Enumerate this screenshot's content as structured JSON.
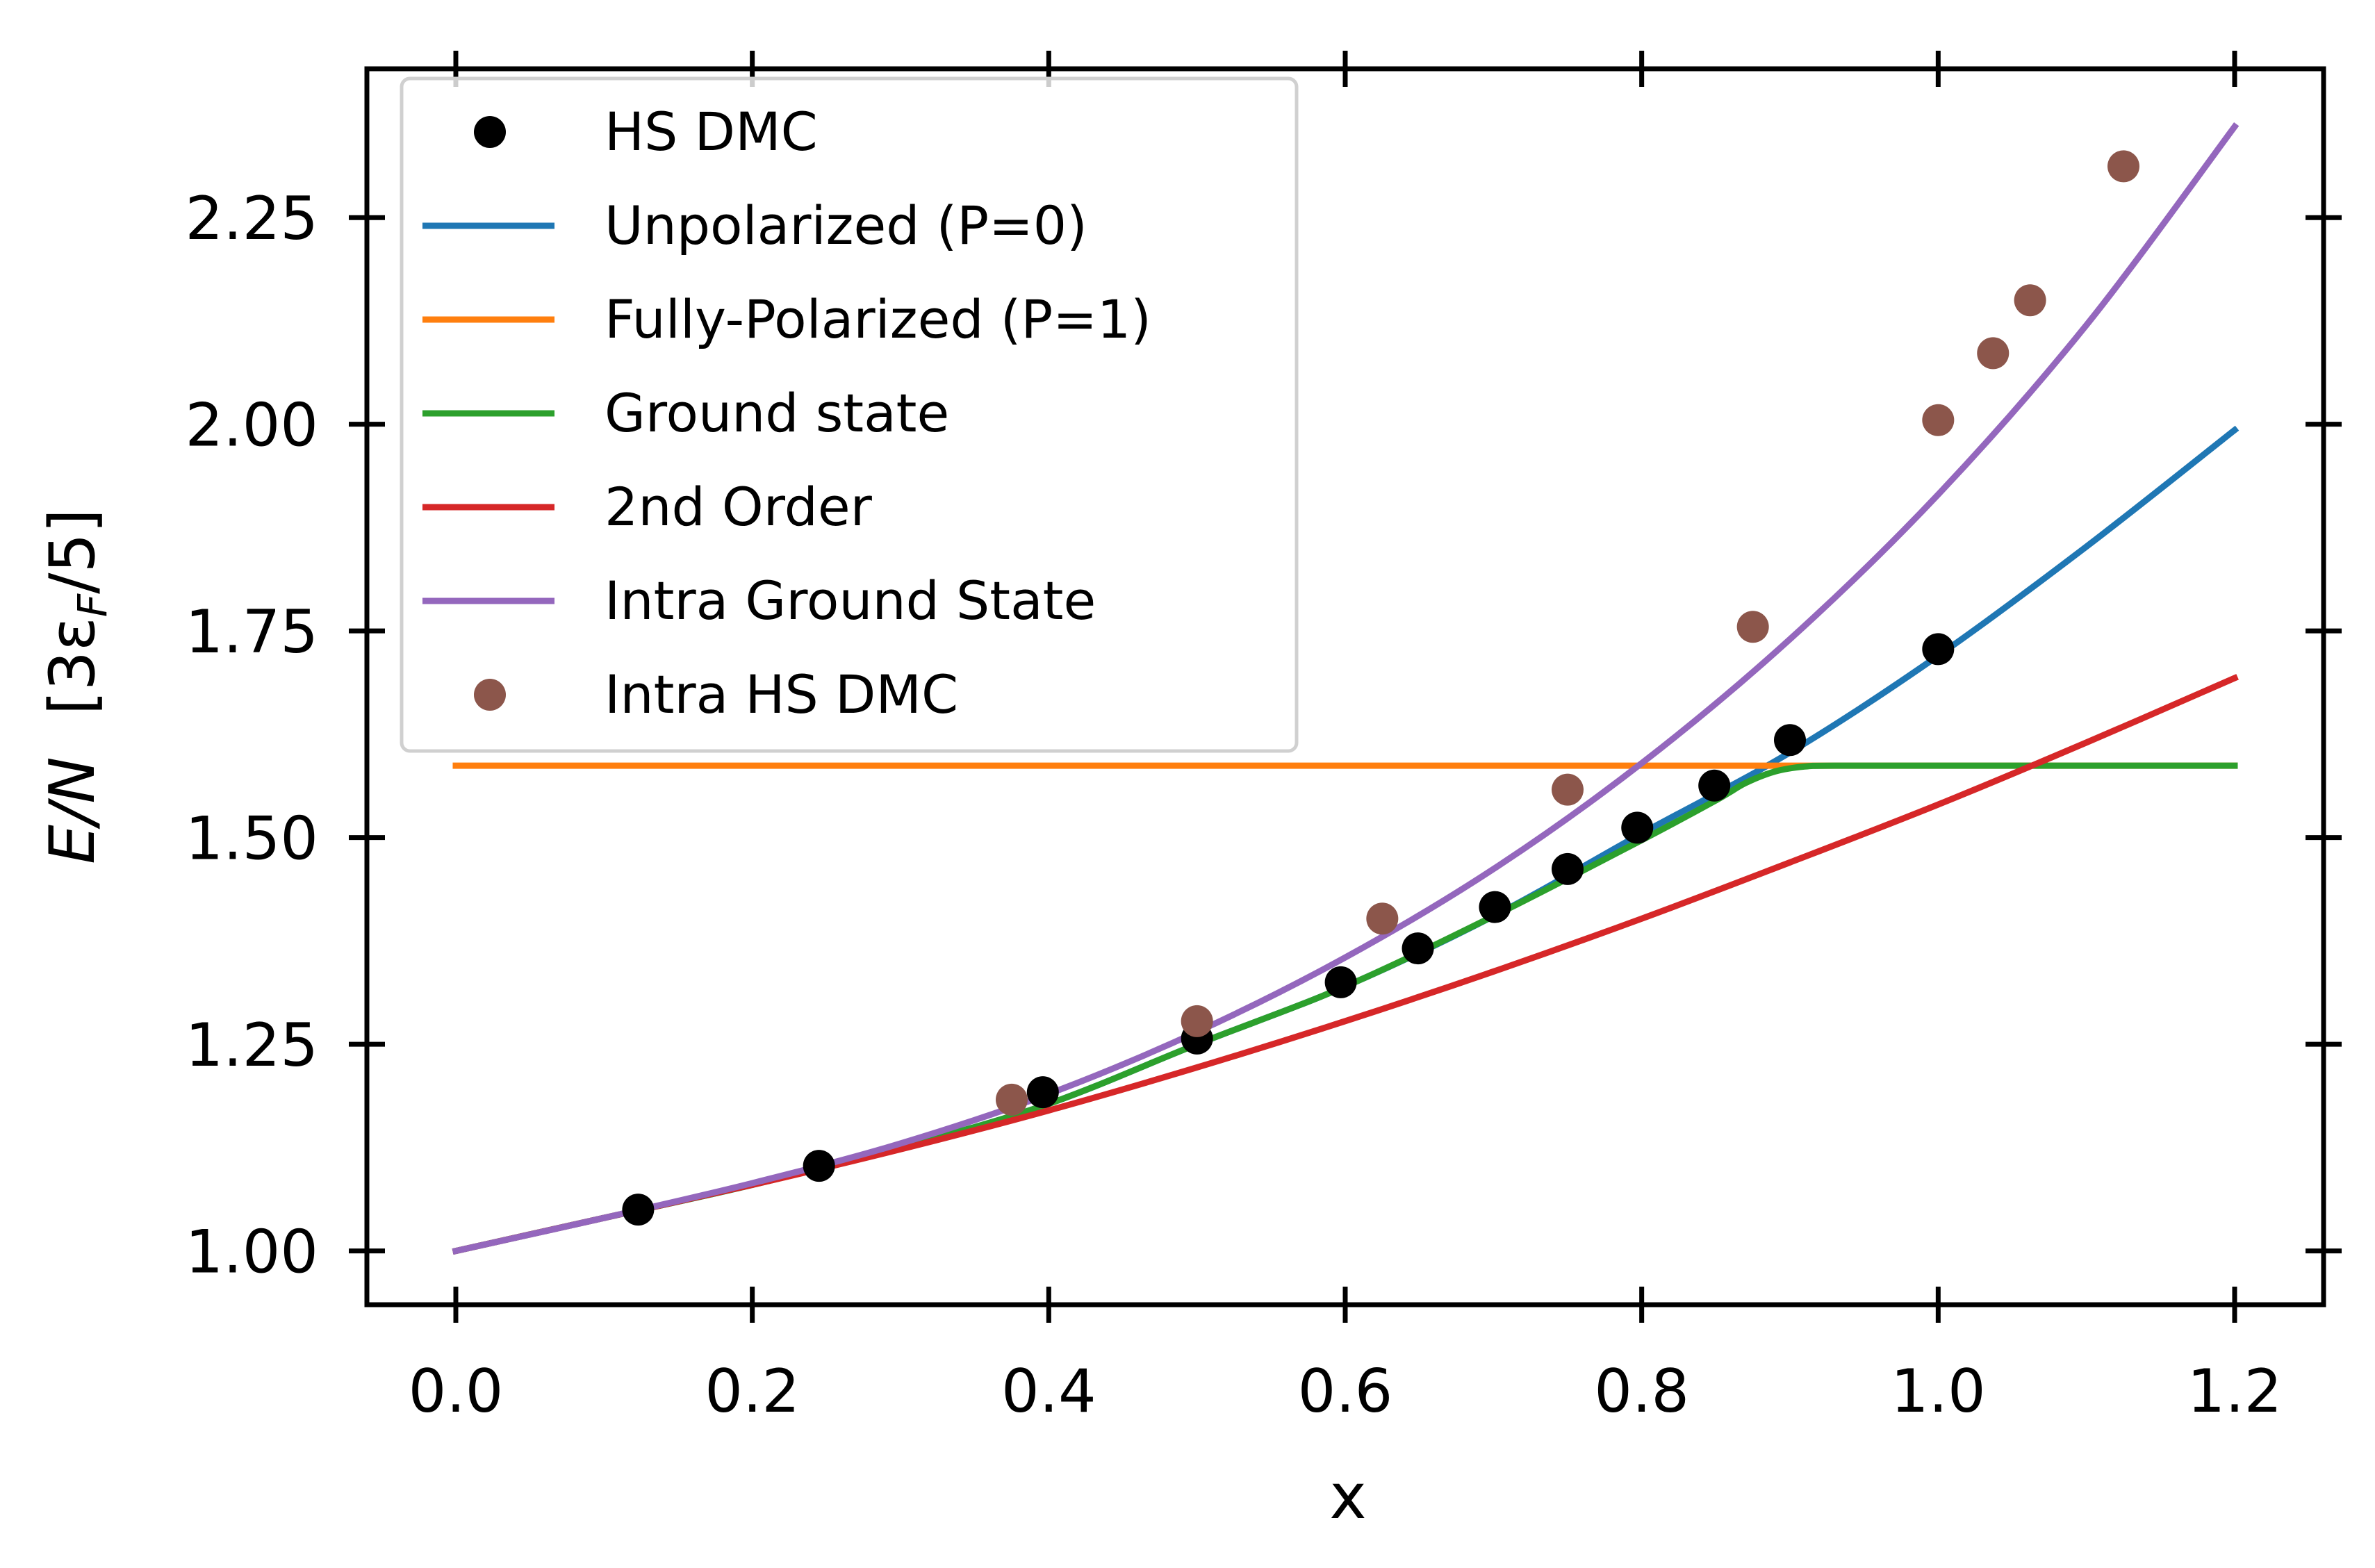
{
  "chart_data": {
    "type": "line",
    "title": "",
    "xlabel": "x",
    "ylabel": {
      "main": "E/N",
      "unit_prefix": "[3ε",
      "unit_subscript": "F",
      "unit_suffix": "/5]"
    },
    "xlim": [
      -0.06,
      1.26
    ],
    "ylim": [
      0.935,
      2.43
    ],
    "xticks": [
      0.0,
      0.2,
      0.4,
      0.6,
      0.8,
      1.0,
      1.2
    ],
    "xtick_labels": [
      "0.0",
      "0.2",
      "0.4",
      "0.6",
      "0.8",
      "1.0",
      "1.2"
    ],
    "yticks": [
      1.0,
      1.25,
      1.5,
      1.75,
      2.0,
      2.25
    ],
    "ytick_labels": [
      "1.00",
      "1.25",
      "1.50",
      "1.75",
      "2.00",
      "2.25"
    ],
    "grid": false,
    "legend_position": "top-left",
    "series": [
      {
        "name": "HS DMC",
        "kind": "scatter",
        "color": "#000000",
        "x": [
          0.123,
          0.245,
          0.396,
          0.5,
          0.597,
          0.649,
          0.701,
          0.75,
          0.797,
          0.849,
          0.9,
          1.0
        ],
        "y": [
          1.05,
          1.103,
          1.192,
          1.257,
          1.325,
          1.366,
          1.416,
          1.462,
          1.512,
          1.563,
          1.618,
          1.728
        ]
      },
      {
        "name": "Unpolarized (P=0)",
        "kind": "line",
        "color": "#1f77b4",
        "x": [
          0.0,
          0.1,
          0.2,
          0.3,
          0.4,
          0.5,
          0.6,
          0.7,
          0.8,
          0.9,
          1.0,
          1.1,
          1.2
        ],
        "y": [
          1.0,
          1.04,
          1.08,
          1.125,
          1.178,
          1.25,
          1.32,
          1.405,
          1.505,
          1.603,
          1.72,
          1.852,
          1.993
        ]
      },
      {
        "name": "Fully-Polarized (P=1)",
        "kind": "line",
        "color": "#ff7f0e",
        "x": [
          0.0,
          1.2
        ],
        "y": [
          1.587,
          1.587
        ]
      },
      {
        "name": "Ground state",
        "kind": "line",
        "color": "#2ca02c",
        "x": [
          0.0,
          0.1,
          0.2,
          0.3,
          0.4,
          0.5,
          0.6,
          0.7,
          0.8,
          0.85,
          0.87,
          0.89,
          0.91,
          0.93,
          1.0,
          1.1,
          1.2
        ],
        "y": [
          1.0,
          1.04,
          1.08,
          1.125,
          1.178,
          1.25,
          1.32,
          1.405,
          1.497,
          1.545,
          1.566,
          1.58,
          1.586,
          1.587,
          1.587,
          1.587,
          1.587
        ]
      },
      {
        "name": "2nd Order",
        "kind": "line",
        "color": "#d62728",
        "x": [
          0.0,
          0.1,
          0.2,
          0.3,
          0.4,
          0.5,
          0.6,
          0.7,
          0.8,
          0.9,
          1.0,
          1.1,
          1.2
        ],
        "y": [
          1.0,
          1.04,
          1.08,
          1.123,
          1.17,
          1.222,
          1.278,
          1.338,
          1.402,
          1.47,
          1.54,
          1.615,
          1.693
        ]
      },
      {
        "name": "Intra Ground State",
        "kind": "line",
        "color": "#9467bd",
        "x": [
          0.0,
          0.1,
          0.2,
          0.3,
          0.4,
          0.5,
          0.6,
          0.7,
          0.8,
          0.9,
          1.0,
          1.1,
          1.2
        ],
        "y": [
          1.0,
          1.04,
          1.082,
          1.13,
          1.19,
          1.265,
          1.355,
          1.462,
          1.59,
          1.74,
          1.915,
          2.12,
          2.36
        ]
      },
      {
        "name": "Intra HS DMC",
        "kind": "scatter",
        "color": "#8c564b",
        "x": [
          0.375,
          0.5,
          0.625,
          0.75,
          0.875,
          1.0,
          1.037,
          1.062,
          1.125
        ],
        "y": [
          1.183,
          1.278,
          1.402,
          1.558,
          1.755,
          2.005,
          2.086,
          2.15,
          2.312
        ]
      }
    ]
  }
}
